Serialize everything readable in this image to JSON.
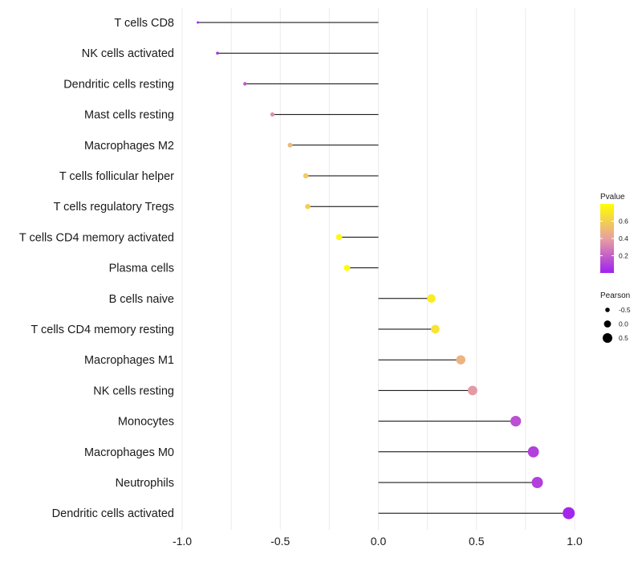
{
  "chart_data": {
    "type": "scatter",
    "subtype": "lollipop",
    "title": "",
    "xlabel": "",
    "ylabel": "",
    "xlim": [
      -1.0,
      1.0
    ],
    "x_ticks": [
      {
        "value": -1.0,
        "label": "-1.0"
      },
      {
        "value": -0.5,
        "label": "-0.5"
      },
      {
        "value": 0.0,
        "label": "0.0"
      },
      {
        "value": 0.5,
        "label": "0.5"
      },
      {
        "value": 1.0,
        "label": "1.0"
      }
    ],
    "points": [
      {
        "category": "T cells CD8",
        "pearson": -0.92,
        "pvalue": 0.02
      },
      {
        "category": "NK cells activated",
        "pearson": -0.82,
        "pvalue": 0.05
      },
      {
        "category": "Dendritic cells resting",
        "pearson": -0.68,
        "pvalue": 0.18
      },
      {
        "category": "Mast cells resting",
        "pearson": -0.54,
        "pvalue": 0.35
      },
      {
        "category": "Macrophages M2",
        "pearson": -0.45,
        "pvalue": 0.5
      },
      {
        "category": "T cells follicular helper",
        "pearson": -0.37,
        "pvalue": 0.58
      },
      {
        "category": "T cells regulatory  Tregs",
        "pearson": -0.36,
        "pvalue": 0.6
      },
      {
        "category": "T cells CD4 memory activated",
        "pearson": -0.2,
        "pvalue": 0.78
      },
      {
        "category": "Plasma cells",
        "pearson": -0.16,
        "pvalue": 0.8
      },
      {
        "category": "B cells naive",
        "pearson": 0.27,
        "pvalue": 0.72
      },
      {
        "category": "T cells CD4 memory resting",
        "pearson": 0.29,
        "pvalue": 0.68
      },
      {
        "category": "Macrophages M1",
        "pearson": 0.42,
        "pvalue": 0.48
      },
      {
        "category": "NK cells resting",
        "pearson": 0.48,
        "pvalue": 0.38
      },
      {
        "category": "Monocytes",
        "pearson": 0.7,
        "pvalue": 0.15
      },
      {
        "category": "Macrophages M0",
        "pearson": 0.79,
        "pvalue": 0.1
      },
      {
        "category": "Neutrophils",
        "pearson": 0.81,
        "pvalue": 0.1
      },
      {
        "category": "Dendritic cells activated",
        "pearson": 0.97,
        "pvalue": 0.02
      }
    ],
    "legend": {
      "placement": "right",
      "color": {
        "title": "Pvalue",
        "range": [
          0.0,
          0.8
        ],
        "low_color": "#a020f0",
        "mid_color": "#e8a0a0",
        "high_color": "#ffff00",
        "ticks": [
          {
            "value": 0.2,
            "label": "0.2"
          },
          {
            "value": 0.4,
            "label": "0.4"
          },
          {
            "value": 0.6,
            "label": "0.6"
          }
        ]
      },
      "size": {
        "title": "Pearson",
        "entries": [
          {
            "value": -0.5,
            "label": "-0.5"
          },
          {
            "value": 0.0,
            "label": "0.0"
          },
          {
            "value": 0.5,
            "label": "0.5"
          }
        ]
      }
    },
    "grid": true,
    "colors": {
      "stem": "#000000",
      "grid": "#ebebeb"
    }
  }
}
